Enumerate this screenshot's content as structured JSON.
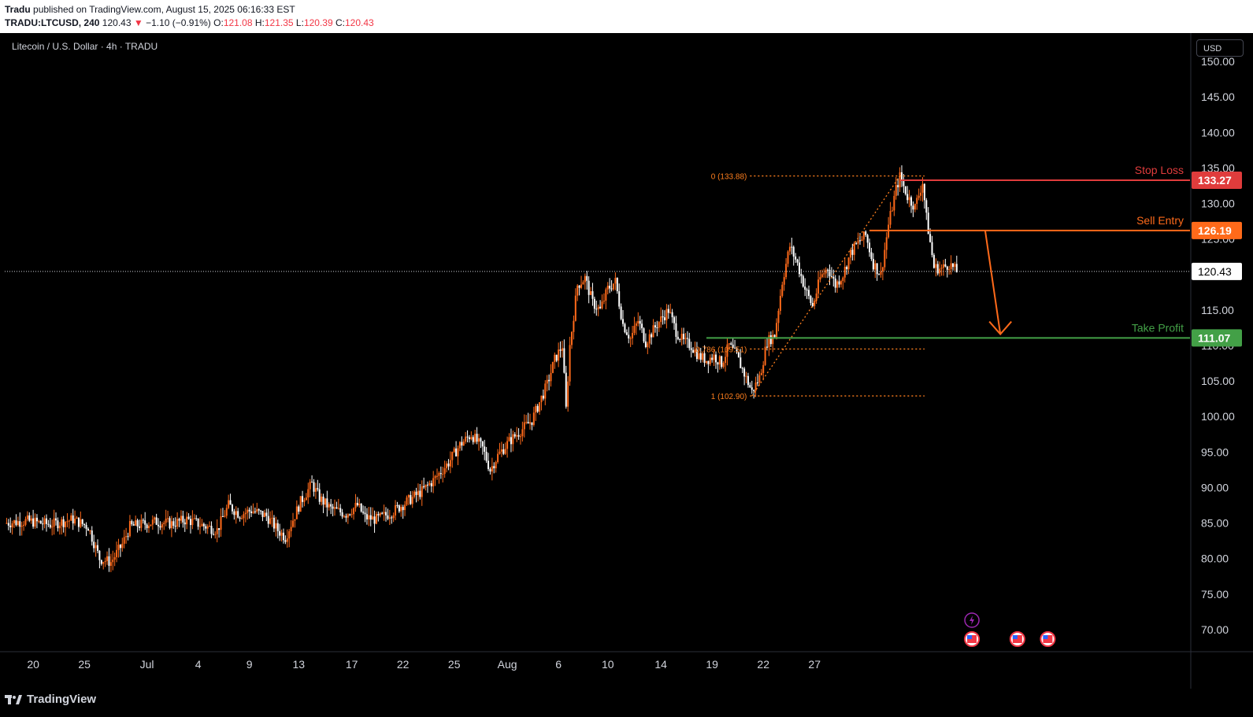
{
  "header": {
    "publisher": "Tradu",
    "published_text": "published on TradingView.com, August 15, 2025 06:16:33 EST",
    "symbol": "TRADU:LTCUSD, 240",
    "last": "120.43",
    "change_arrow": "▼",
    "change": "−1.10 (−0.91%)",
    "o_label": "O:",
    "o_val": "121.08",
    "h_label": "H:",
    "h_val": "121.35",
    "l_label": "L:",
    "l_val": "120.39",
    "c_label": "C:",
    "c_val": "120.43"
  },
  "chart_title": "Litecoin / U.S. Dollar · 4h · TRADU",
  "currency_button": "USD",
  "footer": {
    "brand": "TradingView"
  },
  "colors": {
    "up": "#ff6a1a",
    "down": "#ffffff",
    "stop": "#e03c3c",
    "entry": "#ff6a1a",
    "take_profit": "#43a047",
    "fib": "#ff7f1e",
    "axis_text": "#d1d4dc"
  },
  "chart_data": {
    "type": "candlestick",
    "ylim": [
      67,
      154
    ],
    "y_ticks": [
      70,
      75,
      80,
      85,
      90,
      95,
      100,
      105,
      110,
      115,
      120,
      125,
      130,
      135,
      140,
      145,
      150
    ],
    "y_tick_labels": [
      "70.00",
      "75.00",
      "80.00",
      "85.00",
      "90.00",
      "95.00",
      "100.00",
      "105.00",
      "110.00",
      "115.00",
      "120.00",
      "125.00",
      "130.00",
      "135.00",
      "140.00",
      "145.00",
      "150.00"
    ],
    "x_tick_labels": [
      "20",
      "25",
      "Jul",
      "4",
      "9",
      "13",
      "17",
      "22",
      "25",
      "Aug",
      "6",
      "10",
      "14",
      "19",
      "22",
      "27"
    ],
    "current_price": 120.43,
    "current_price_label": "120.43",
    "levels": [
      {
        "name": "Stop Loss",
        "price": 133.27,
        "label": "133.27",
        "color": "#e03c3c"
      },
      {
        "name": "Sell Entry",
        "price": 126.19,
        "label": "126.19",
        "color": "#ff6a1a"
      },
      {
        "name": "Take Profit",
        "price": 111.07,
        "label": "111.07",
        "color": "#43a047"
      }
    ],
    "fib": [
      {
        "label": "0 (133.88)",
        "price": 133.88
      },
      {
        "label": "0.786 (109.51)",
        "price": 109.51
      },
      {
        "label": "1 (102.90)",
        "price": 102.9
      }
    ],
    "price_path": [
      [
        0,
        85.0
      ],
      [
        12,
        85.3
      ],
      [
        24,
        84.8
      ],
      [
        36,
        85.5
      ],
      [
        44,
        84.5
      ],
      [
        50,
        80.0
      ],
      [
        56,
        79.5
      ],
      [
        62,
        82.0
      ],
      [
        66,
        84.5
      ],
      [
        72,
        84.8
      ],
      [
        80,
        85.2
      ],
      [
        88,
        84.9
      ],
      [
        96,
        85.5
      ],
      [
        104,
        84.7
      ],
      [
        112,
        84.0
      ],
      [
        118,
        87.5
      ],
      [
        124,
        86.2
      ],
      [
        130,
        86.8
      ],
      [
        138,
        86.0
      ],
      [
        144,
        84.0
      ],
      [
        148,
        83.0
      ],
      [
        152,
        85.5
      ],
      [
        156,
        88.0
      ],
      [
        162,
        90.5
      ],
      [
        166,
        88.5
      ],
      [
        172,
        87.0
      ],
      [
        180,
        86.3
      ],
      [
        186,
        87.5
      ],
      [
        190,
        85.8
      ],
      [
        196,
        85.5
      ],
      [
        204,
        86.5
      ],
      [
        212,
        88.0
      ],
      [
        220,
        89.5
      ],
      [
        226,
        91.0
      ],
      [
        234,
        93.5
      ],
      [
        240,
        96.0
      ],
      [
        246,
        97.5
      ],
      [
        252,
        95.5
      ],
      [
        256,
        92.5
      ],
      [
        260,
        94.5
      ],
      [
        266,
        96.5
      ],
      [
        272,
        98.0
      ],
      [
        278,
        99.5
      ],
      [
        282,
        102.0
      ],
      [
        286,
        104.5
      ],
      [
        290,
        108.0
      ],
      [
        294,
        110.0
      ],
      [
        296,
        101.0
      ],
      [
        298,
        110.0
      ],
      [
        302,
        118.5
      ],
      [
        306,
        119.5
      ],
      [
        310,
        116.0
      ],
      [
        314,
        115.0
      ],
      [
        318,
        118.0
      ],
      [
        322,
        119.0
      ],
      [
        326,
        113.0
      ],
      [
        330,
        111.0
      ],
      [
        334,
        113.5
      ],
      [
        338,
        110.5
      ],
      [
        344,
        113.0
      ],
      [
        350,
        115.0
      ],
      [
        354,
        112.0
      ],
      [
        358,
        110.5
      ],
      [
        362,
        110.0
      ],
      [
        366,
        108.5
      ],
      [
        370,
        108.0
      ],
      [
        374,
        108.5
      ],
      [
        378,
        107.5
      ],
      [
        382,
        110.0
      ],
      [
        386,
        108.5
      ],
      [
        390,
        106.0
      ],
      [
        394,
        103.5
      ],
      [
        398,
        105.5
      ],
      [
        402,
        110.5
      ],
      [
        406,
        111.5
      ],
      [
        410,
        119.0
      ],
      [
        414,
        124.0
      ],
      [
        418,
        121.5
      ],
      [
        422,
        118.0
      ],
      [
        426,
        115.5
      ],
      [
        430,
        119.5
      ],
      [
        434,
        121.0
      ],
      [
        438,
        118.5
      ],
      [
        442,
        120.0
      ],
      [
        446,
        123.0
      ],
      [
        450,
        124.5
      ],
      [
        454,
        125.5
      ],
      [
        458,
        121.5
      ],
      [
        462,
        120.0
      ],
      [
        466,
        127.0
      ],
      [
        470,
        132.0
      ],
      [
        472,
        133.8
      ],
      [
        476,
        131.0
      ],
      [
        480,
        129.5
      ],
      [
        484,
        133.0
      ],
      [
        486,
        128.0
      ],
      [
        490,
        121.0
      ],
      [
        494,
        120.8
      ],
      [
        498,
        121.5
      ],
      [
        502,
        120.43
      ]
    ],
    "x_domain": [
      0,
      625
    ],
    "x_tick_positions": [
      15,
      42,
      75,
      102,
      129,
      155,
      183,
      210,
      237,
      265,
      292,
      318,
      346,
      373,
      400,
      427
    ]
  }
}
